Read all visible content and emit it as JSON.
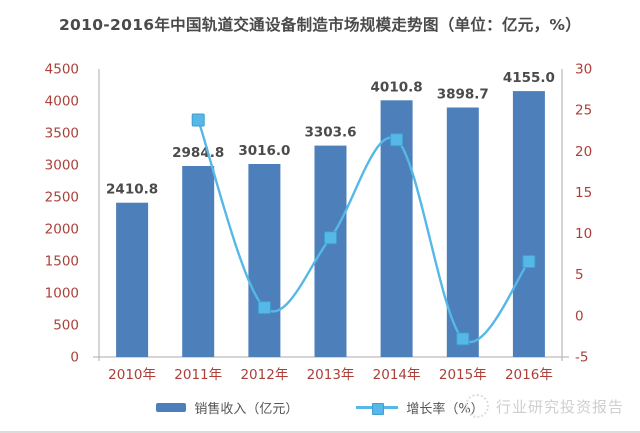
{
  "watermark": {
    "text": "行业研究投资报告"
  },
  "style": {
    "bar_color": "#4d7fba",
    "line_color": "#56b8e7",
    "marker_stroke": "#3e9fd0",
    "axis_label_color": "#ac4039",
    "data_label_color": "#4b4b4b",
    "axis_line_color": "#ababab",
    "title_color": "#4a4a4a",
    "legend_text_color": "#555555",
    "watermark_color": "#cfcfcf"
  },
  "chart_data": {
    "type": "combo-bar-line",
    "title": "2010-2016年中国轨道交通设备制造市场规模走势图（单位：亿元，%）",
    "categories": [
      "2010年",
      "2011年",
      "2012年",
      "2013年",
      "2014年",
      "2015年",
      "2016年"
    ],
    "series": [
      {
        "name": "销售收入（亿元）",
        "chart_type": "bar",
        "axis": "left",
        "values": [
          2410.8,
          2984.8,
          3016.0,
          3303.6,
          4010.8,
          3898.7,
          4155.0
        ],
        "data_labels": true
      },
      {
        "name": "增长率（%）",
        "chart_type": "line",
        "axis": "right",
        "smooth": true,
        "marker": "square",
        "values": [
          null,
          23.8,
          1.0,
          9.5,
          21.4,
          -2.8,
          6.6
        ]
      }
    ],
    "left_axis": {
      "min": 0,
      "max": 4500,
      "step": 500,
      "ticks": [
        0,
        500,
        1000,
        1500,
        2000,
        2500,
        3000,
        3500,
        4000,
        4500
      ]
    },
    "right_axis": {
      "min": -5,
      "max": 30,
      "step": 5,
      "ticks": [
        -5,
        0,
        5,
        10,
        15,
        20,
        25,
        30
      ]
    },
    "grid": false,
    "legend_position": "bottom"
  }
}
